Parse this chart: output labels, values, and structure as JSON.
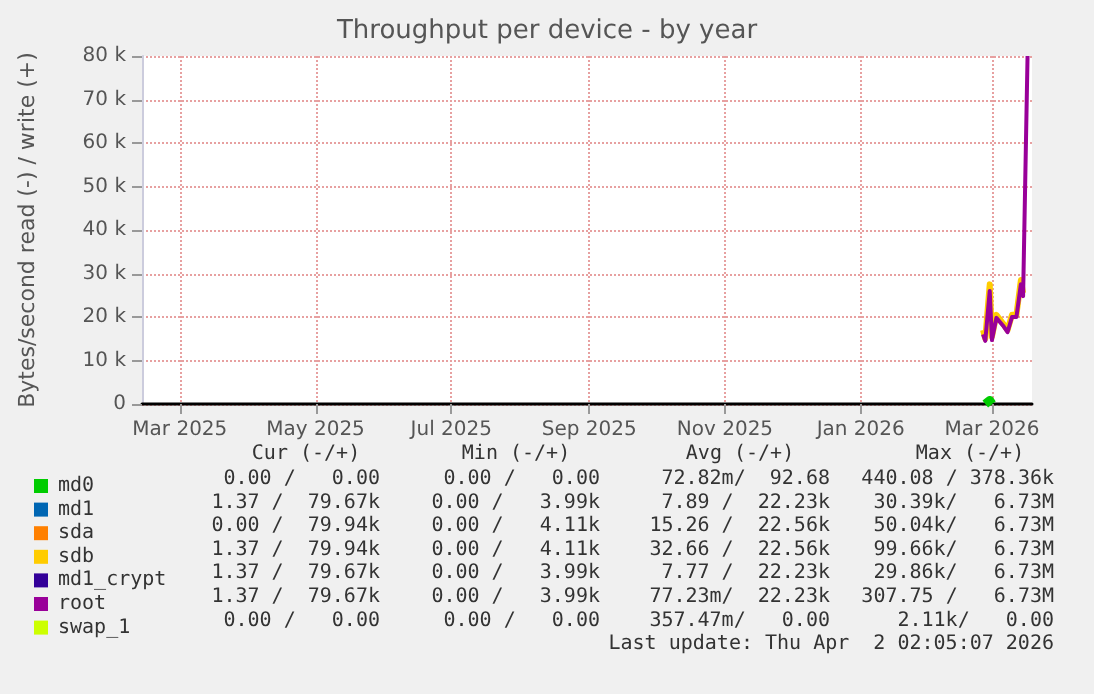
{
  "chart_data": {
    "type": "line",
    "title": "Throughput per device - by year",
    "ylabel": "Bytes/second read (-) / write (+)",
    "x": [
      "2026-02-25",
      "2026-02-26",
      "2026-02-28",
      "2026-03-01",
      "2026-03-03",
      "2026-03-06",
      "2026-03-08",
      "2026-03-10",
      "2026-03-12",
      "2026-03-14",
      "2026-03-15",
      "2026-03-17"
    ],
    "series": [
      {
        "name": "md0",
        "color": "#00cc00",
        "values": [
          null,
          0,
          800,
          0,
          null,
          null,
          null,
          null,
          null,
          null,
          null,
          null
        ]
      },
      {
        "name": "md1",
        "color": "#0066b3",
        "values": [
          null,
          null,
          null,
          null,
          null,
          null,
          null,
          null,
          null,
          null,
          null,
          null
        ]
      },
      {
        "name": "sda",
        "color": "#ff8000",
        "values": [
          null,
          null,
          null,
          null,
          null,
          null,
          null,
          null,
          null,
          null,
          null,
          null
        ]
      },
      {
        "name": "sdb",
        "color": "#ffcc00",
        "values": [
          17000,
          15000,
          27500,
          15500,
          20500,
          18500,
          17000,
          20500,
          20500,
          28500,
          25500,
          null
        ]
      },
      {
        "name": "md1_crypt",
        "color": "#330099",
        "values": [
          null,
          null,
          null,
          null,
          null,
          null,
          null,
          null,
          null,
          null,
          null,
          null
        ]
      },
      {
        "name": "root",
        "color": "#990099",
        "values": [
          16000,
          14500,
          26000,
          14700,
          19800,
          18000,
          16500,
          20000,
          20000,
          27500,
          24800,
          80000
        ]
      },
      {
        "name": "swap_1",
        "color": "#ccff00",
        "values": [
          null,
          null,
          null,
          null,
          null,
          null,
          null,
          null,
          null,
          null,
          null,
          null
        ]
      }
    ],
    "xlim": [
      "2025-02-12",
      "2026-03-19"
    ],
    "xticks": [
      {
        "value": "2025-03-01",
        "label": "Mar 2025"
      },
      {
        "value": "2025-05-01",
        "label": "May 2025"
      },
      {
        "value": "2025-07-01",
        "label": "Jul 2025"
      },
      {
        "value": "2025-09-01",
        "label": "Sep 2025"
      },
      {
        "value": "2025-11-01",
        "label": "Nov 2025"
      },
      {
        "value": "2026-01-01",
        "label": "Jan 2026"
      },
      {
        "value": "2026-03-01",
        "label": "Mar 2026"
      }
    ],
    "ylim": [
      0,
      80000
    ],
    "yticks": [
      {
        "value": 0,
        "label": "0"
      },
      {
        "value": 10000,
        "label": "10 k"
      },
      {
        "value": 20000,
        "label": "20 k"
      },
      {
        "value": 30000,
        "label": "30 k"
      },
      {
        "value": 40000,
        "label": "40 k"
      },
      {
        "value": 50000,
        "label": "50 k"
      },
      {
        "value": 60000,
        "label": "60 k"
      },
      {
        "value": 70000,
        "label": "70 k"
      },
      {
        "value": 80000,
        "label": "80 k"
      }
    ],
    "grid": true,
    "legend": "bottom left",
    "marker": "none",
    "annotations": [
      "Cur (-/+)",
      "Min (-/+)",
      "Avg (-/+)",
      "Max (-/+)",
      "0.00 /   0.00",
      "0.00 /   0.00",
      "72.82m/  92.68",
      "440.08 / 378.36k",
      "1.37 /  79.67k",
      "0.00 /   3.99k",
      "7.89 /  22.23k",
      "30.39k/   6.73M",
      "0.00 /  79.94k",
      "0.00 /   4.11k",
      "15.26 /  22.56k",
      "50.04k/   6.73M",
      "1.37 /  79.94k",
      "0.00 /   4.11k",
      "32.66 /  22.56k",
      "99.66k/   6.73M",
      "1.37 /  79.67k",
      "0.00 /   3.99k",
      "7.77 /  22.23k",
      "29.86k/   6.73M",
      "1.37 /  79.67k",
      "0.00 /   3.99k",
      "77.23m/  22.23k",
      "307.75 /   6.73M",
      "0.00 /   0.00",
      "0.00 /   0.00",
      "357.47m/   0.00",
      "2.11k/   0.00",
      "Last update: Thu Apr  2 02:05:07 2026"
    ]
  }
}
